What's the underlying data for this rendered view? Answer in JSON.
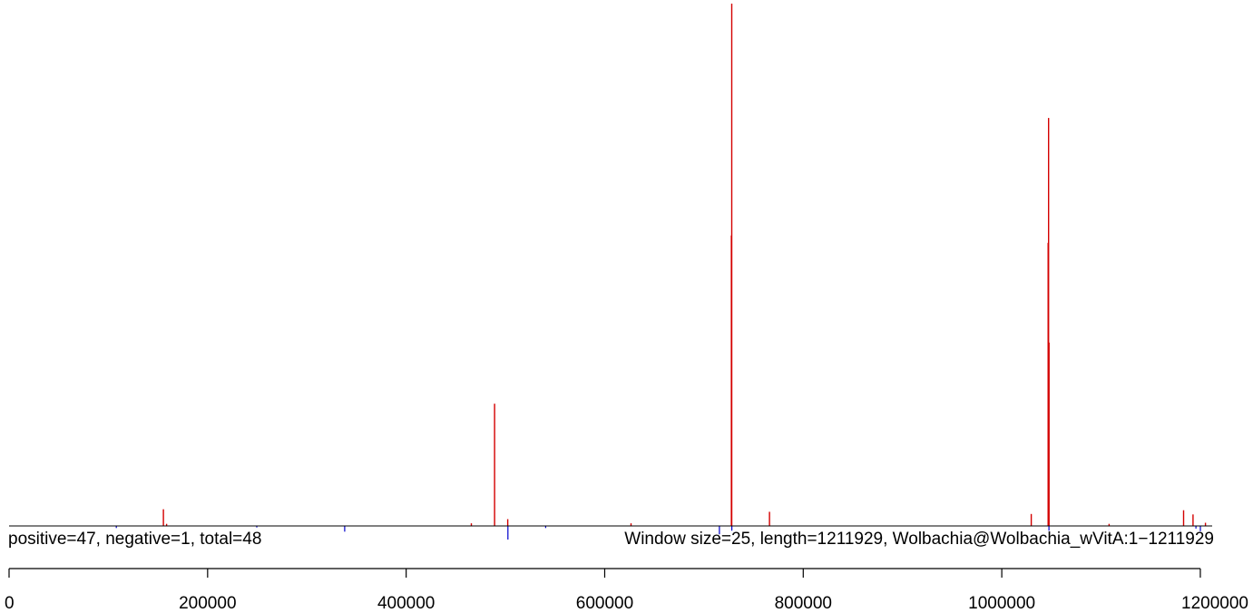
{
  "chart_data": {
    "type": "bar",
    "stats_label": "positive=47, negative=1, total=48",
    "info_label": "Window size=25, length=1211929, Wolbachia@Wolbachia_wVitA:1−1211929",
    "xlim": [
      0,
      1211929
    ],
    "x_ticks": [
      0,
      200000,
      400000,
      600000,
      800000,
      1000000,
      1200000
    ],
    "x_tick_labels": [
      "0",
      "200000",
      "400000",
      "600000",
      "800000",
      "1000000",
      "1200000"
    ],
    "positive_max": 100,
    "positive_color": "#d40000",
    "negative_color": "#0000cc",
    "positive": [
      {
        "x": 154800,
        "y": 3.2
      },
      {
        "x": 158000,
        "y": 0.4
      },
      {
        "x": 465000,
        "y": 0.5
      },
      {
        "x": 488400,
        "y": 23.4
      },
      {
        "x": 501700,
        "y": 1.3
      },
      {
        "x": 625900,
        "y": 0.5
      },
      {
        "x": 727000,
        "y": 55.6
      },
      {
        "x": 727300,
        "y": 100
      },
      {
        "x": 765400,
        "y": 2.7
      },
      {
        "x": 1029000,
        "y": 2.3
      },
      {
        "x": 1046000,
        "y": 54.2
      },
      {
        "x": 1046500,
        "y": 78.1
      },
      {
        "x": 1047000,
        "y": 35.1
      },
      {
        "x": 1107500,
        "y": 0.4
      },
      {
        "x": 1182500,
        "y": 3.0
      },
      {
        "x": 1192000,
        "y": 2.2
      },
      {
        "x": 1204500,
        "y": 0.6
      }
    ],
    "negative": [
      {
        "x": 107500,
        "y": 0.4
      },
      {
        "x": 249000,
        "y": 0.3
      },
      {
        "x": 337500,
        "y": 1.1
      },
      {
        "x": 502000,
        "y": 2.6
      },
      {
        "x": 540000,
        "y": 0.4
      },
      {
        "x": 715000,
        "y": 1.6
      },
      {
        "x": 727500,
        "y": 0.9
      },
      {
        "x": 1047000,
        "y": 0.9
      },
      {
        "x": 1195000,
        "y": 0.5
      },
      {
        "x": 1199500,
        "y": 1.0
      }
    ]
  }
}
